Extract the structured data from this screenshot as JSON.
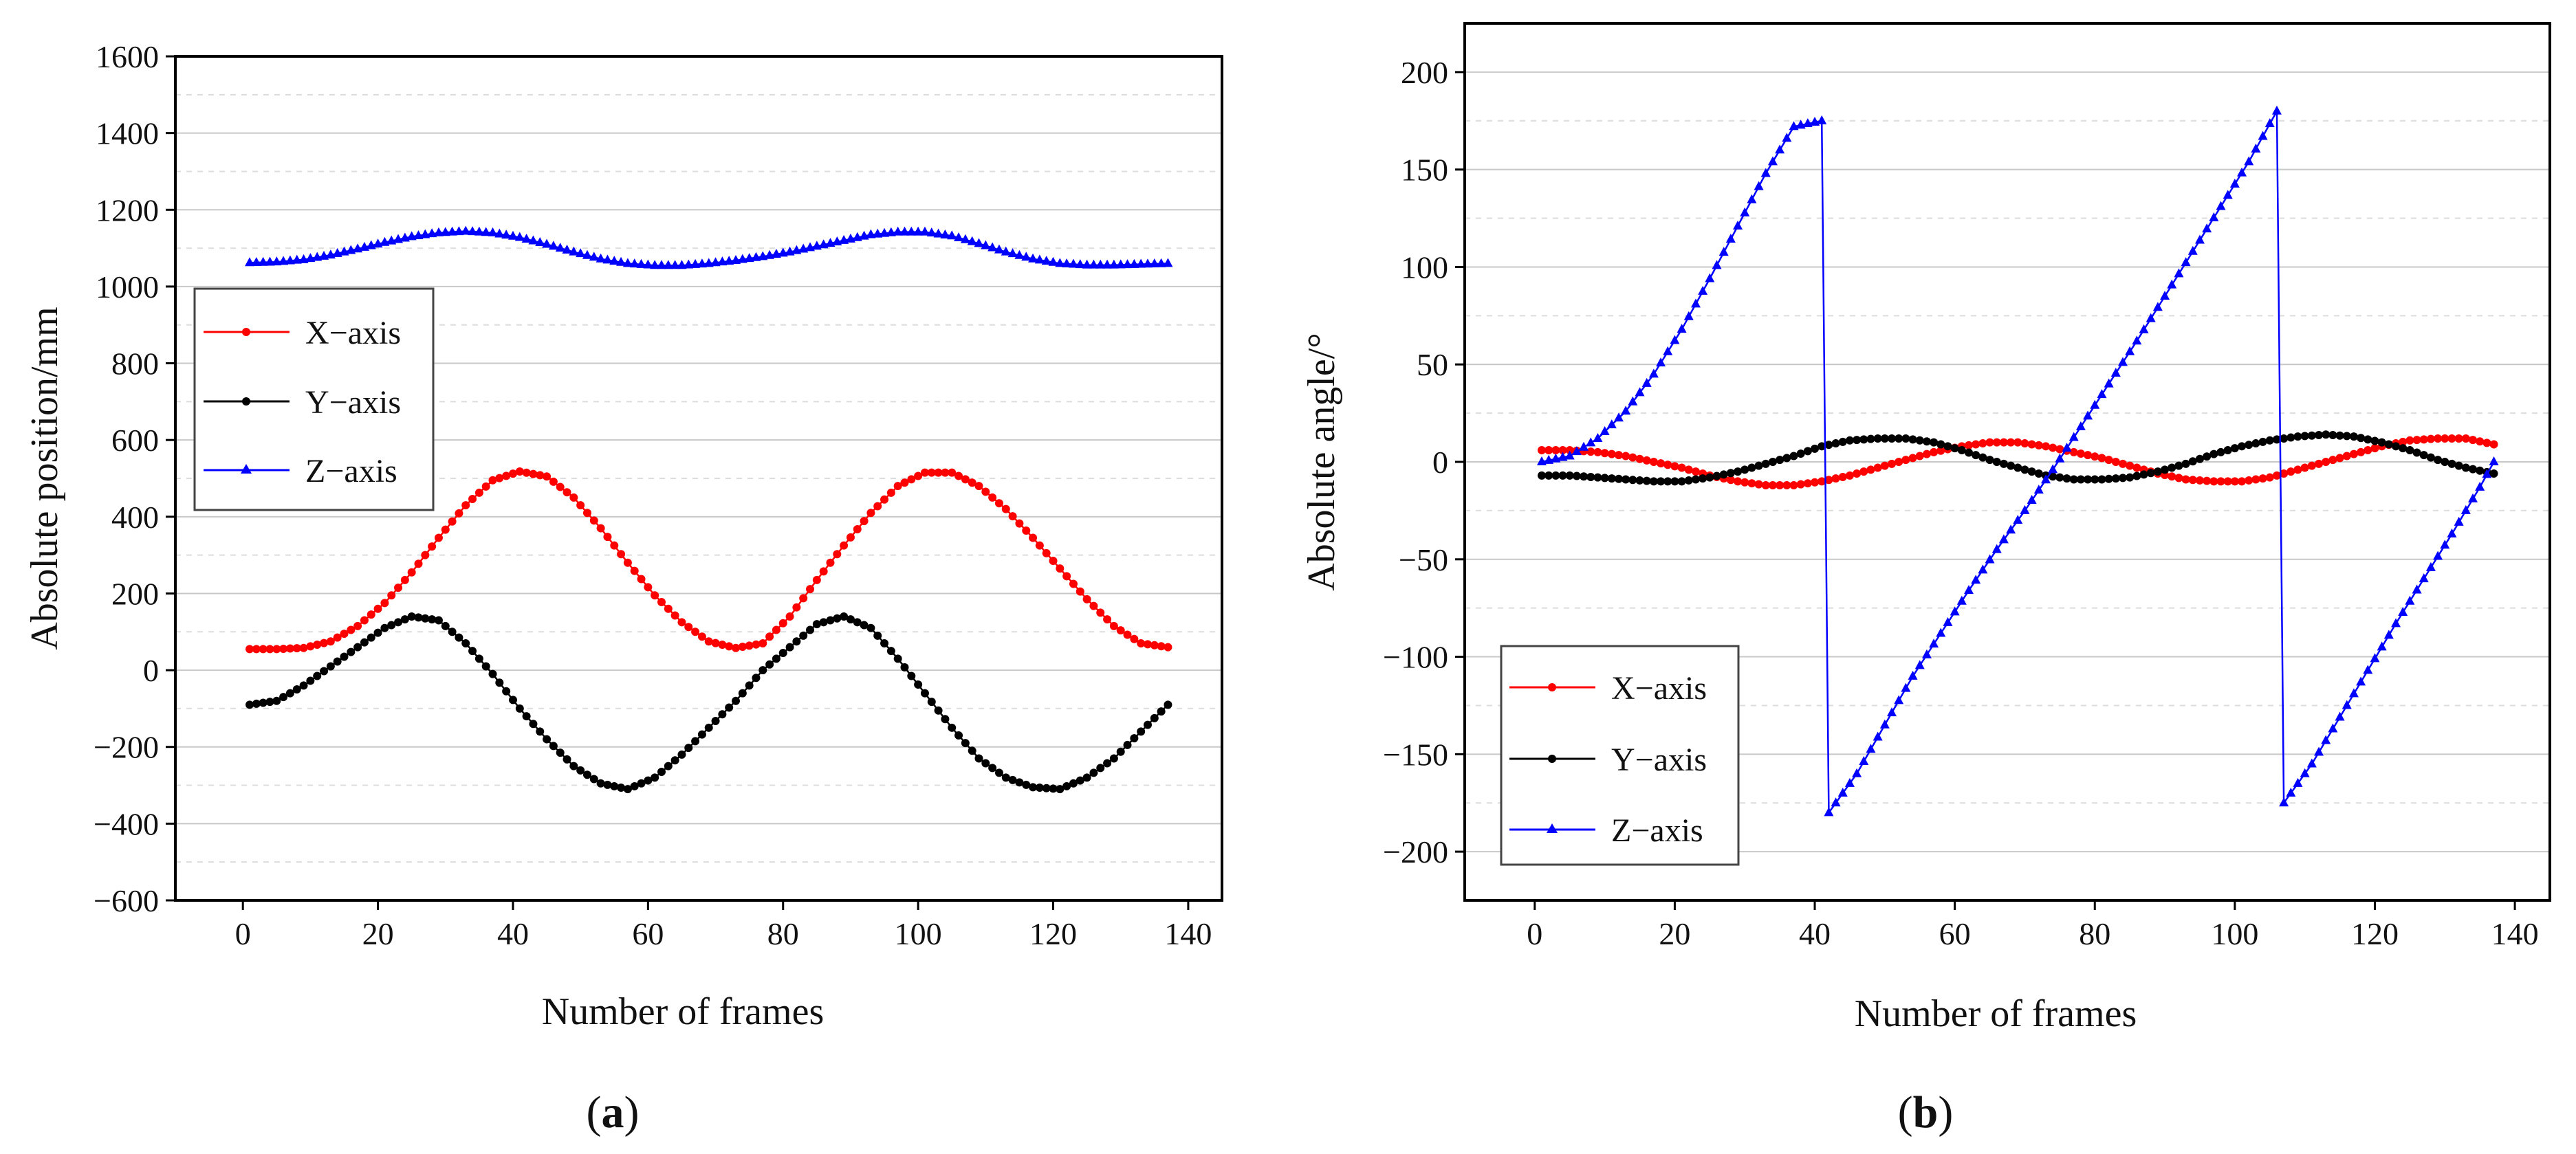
{
  "chart_data": [
    {
      "id": "a",
      "type": "line",
      "panel_label": "a",
      "xlabel": "Number of frames",
      "ylabel": "Absolute position/mm",
      "xlim": [
        -10,
        145
      ],
      "ylim": [
        -600,
        1600
      ],
      "xticks": [
        0,
        20,
        40,
        60,
        80,
        100,
        120,
        140
      ],
      "yticks": [
        -600,
        -400,
        -200,
        0,
        200,
        400,
        600,
        800,
        1000,
        1200,
        1400,
        1600
      ],
      "legend_position": "upper-left",
      "series": [
        {
          "name": "X−axis",
          "color": "#ff0000",
          "marker": "dot",
          "x": [
            1,
            5,
            9,
            13,
            17,
            21,
            25,
            29,
            33,
            37,
            41,
            45,
            49,
            53,
            57,
            61,
            65,
            69,
            73,
            77,
            81,
            85,
            89,
            93,
            97,
            101,
            105,
            109,
            113,
            117,
            121,
            125,
            129,
            133,
            137
          ],
          "y": [
            55,
            55,
            58,
            75,
            115,
            175,
            255,
            345,
            430,
            495,
            518,
            505,
            450,
            370,
            280,
            195,
            125,
            75,
            58,
            70,
            140,
            235,
            325,
            410,
            480,
            515,
            515,
            480,
            420,
            345,
            265,
            185,
            115,
            70,
            60
          ]
        },
        {
          "name": "Y−axis",
          "color": "#000000",
          "marker": "dot",
          "x": [
            1,
            5,
            9,
            13,
            17,
            21,
            25,
            29,
            33,
            37,
            41,
            45,
            49,
            53,
            57,
            61,
            65,
            69,
            73,
            77,
            81,
            85,
            89,
            93,
            97,
            101,
            105,
            109,
            113,
            117,
            121,
            125,
            129,
            133,
            137
          ],
          "y": [
            -90,
            -80,
            -40,
            10,
            60,
            110,
            140,
            130,
            70,
            -10,
            -100,
            -180,
            -250,
            -295,
            -310,
            -280,
            -220,
            -150,
            -80,
            0,
            60,
            120,
            140,
            110,
            30,
            -60,
            -150,
            -230,
            -280,
            -305,
            -310,
            -280,
            -230,
            -160,
            -90
          ]
        },
        {
          "name": "Z−axis",
          "color": "#0000ff",
          "marker": "triangle",
          "x": [
            1,
            5,
            9,
            13,
            17,
            21,
            25,
            29,
            33,
            37,
            41,
            45,
            49,
            53,
            57,
            61,
            65,
            69,
            73,
            77,
            81,
            85,
            89,
            93,
            97,
            101,
            105,
            109,
            113,
            117,
            121,
            125,
            129,
            133,
            137
          ],
          "y": [
            1062,
            1064,
            1070,
            1082,
            1098,
            1115,
            1130,
            1140,
            1144,
            1140,
            1128,
            1110,
            1090,
            1072,
            1060,
            1055,
            1055,
            1060,
            1068,
            1078,
            1090,
            1105,
            1120,
            1135,
            1142,
            1142,
            1132,
            1112,
            1090,
            1072,
            1060,
            1056,
            1056,
            1058,
            1060
          ]
        }
      ]
    },
    {
      "id": "b",
      "type": "line",
      "panel_label": "b",
      "xlabel": "Number of frames",
      "ylabel": "Absolute angle/°",
      "xlim": [
        -10,
        145
      ],
      "ylim": [
        -225,
        225
      ],
      "xticks": [
        0,
        20,
        40,
        60,
        80,
        100,
        120,
        140
      ],
      "yticks": [
        -200,
        -150,
        -100,
        -50,
        0,
        50,
        100,
        150,
        200
      ],
      "legend_position": "lower-left",
      "series": [
        {
          "name": "X−axis",
          "color": "#ff0000",
          "marker": "dot",
          "x": [
            1,
            5,
            9,
            13,
            17,
            21,
            25,
            29,
            33,
            37,
            41,
            45,
            49,
            53,
            57,
            61,
            65,
            69,
            73,
            77,
            81,
            85,
            89,
            93,
            97,
            101,
            105,
            109,
            113,
            117,
            121,
            125,
            129,
            133,
            137
          ],
          "y": [
            6,
            6,
            5,
            3,
            0,
            -3,
            -7,
            -10,
            -12,
            -12,
            -10,
            -7,
            -3,
            1,
            5,
            8,
            10,
            10,
            8,
            5,
            2,
            -2,
            -6,
            -9,
            -10,
            -10,
            -8,
            -4,
            0,
            4,
            8,
            11,
            12,
            12,
            9
          ]
        },
        {
          "name": "Y−axis",
          "color": "#000000",
          "marker": "dot",
          "x": [
            1,
            5,
            9,
            13,
            17,
            21,
            25,
            29,
            33,
            37,
            41,
            45,
            49,
            53,
            57,
            61,
            65,
            69,
            73,
            77,
            81,
            85,
            89,
            93,
            97,
            101,
            105,
            109,
            113,
            117,
            121,
            125,
            129,
            133,
            137
          ],
          "y": [
            -7,
            -7,
            -8,
            -9,
            -10,
            -10,
            -8,
            -5,
            -1,
            3,
            8,
            11,
            12,
            12,
            10,
            6,
            1,
            -3,
            -7,
            -9,
            -9,
            -8,
            -5,
            -1,
            4,
            8,
            11,
            13,
            14,
            13,
            10,
            6,
            1,
            -3,
            -6
          ]
        },
        {
          "name": "Z−axis",
          "color": "#0000ff",
          "marker": "triangle",
          "x": [
            1,
            5,
            9,
            13,
            17,
            21,
            25,
            29,
            33,
            37,
            41,
            42,
            46,
            50,
            54,
            58,
            62,
            66,
            70,
            74,
            78,
            82,
            86,
            90,
            94,
            98,
            102,
            106,
            107,
            111,
            115,
            119,
            123,
            127,
            131,
            135,
            137
          ],
          "y": [
            0,
            3,
            12,
            26,
            45,
            68,
            94,
            121,
            148,
            172,
            175,
            -180,
            -160,
            -135,
            -110,
            -88,
            -66,
            -45,
            -25,
            -4,
            18,
            40,
            62,
            85,
            108,
            131,
            154,
            180,
            -175,
            -155,
            -131,
            -107,
            -83,
            -60,
            -37,
            -13,
            0
          ]
        }
      ]
    }
  ]
}
